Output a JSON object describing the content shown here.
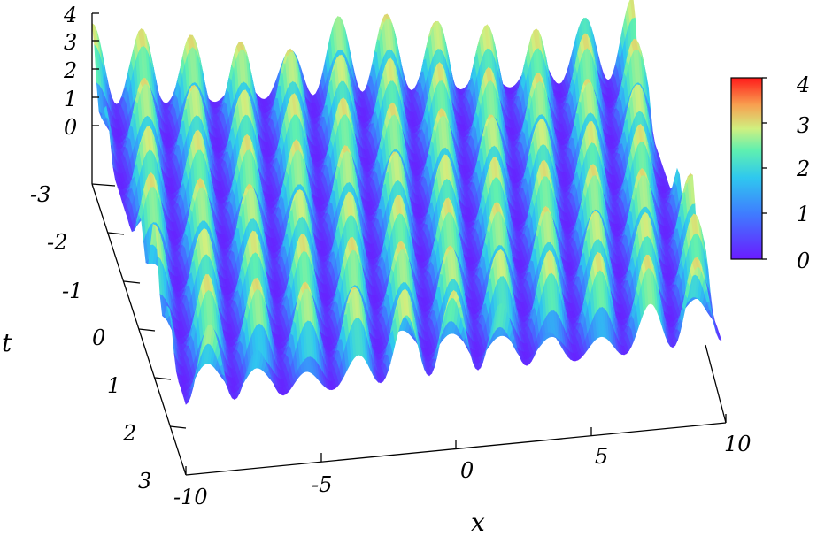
{
  "chart_data": {
    "type": "surface",
    "title": "",
    "xlabel": "x",
    "ylabel": "t",
    "zlabel": "",
    "x_range": [
      -10,
      10
    ],
    "t_range": [
      -3,
      3
    ],
    "z_range": [
      0,
      4
    ],
    "x_ticks": [
      "-10",
      "-5",
      "0",
      "5",
      "10"
    ],
    "t_ticks": [
      "-3",
      "-2",
      "-1",
      "0",
      "1",
      "2",
      "3"
    ],
    "z_ticks": [
      "0",
      "1",
      "2",
      "3",
      "4"
    ],
    "colorbar_ticks": [
      "0",
      "1",
      "2",
      "3",
      "4"
    ],
    "colorbar_range": [
      0,
      4
    ],
    "colormap": [
      "#6a1bff",
      "#3f7cff",
      "#2fc8ef",
      "#5ff0b0",
      "#d0f080",
      "#f8a050",
      "#ff1a1a"
    ],
    "peak_rows": 6,
    "peaks_per_row": 11,
    "baseline_level": 1.0,
    "peak_level_range": [
      2.2,
      4.0
    ],
    "grid": false
  }
}
